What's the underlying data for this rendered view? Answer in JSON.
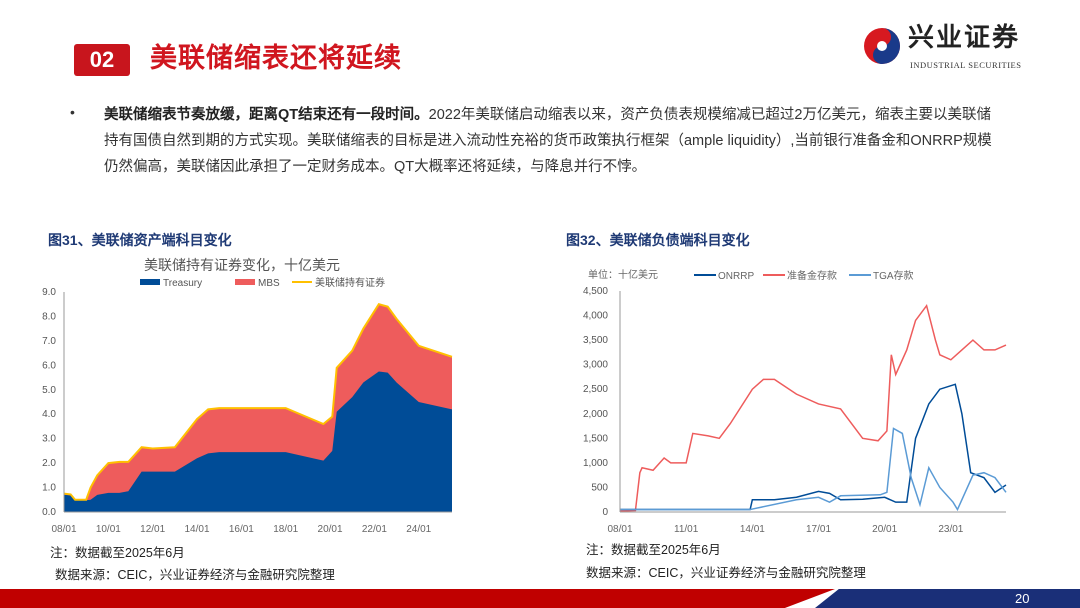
{
  "header": {
    "section_number": "02",
    "title": "美联储缩表还将延续"
  },
  "logo": {
    "cn": "兴业证券",
    "en": "INDUSTRIAL SECURITIES"
  },
  "body": {
    "bullet": "•",
    "bold": "美联储缩表节奏放缓，距离QT结束还有一段时间。",
    "text": "2022年美联储启动缩表以来，资产负债表规模缩减已超过2万亿美元，缩表主要以美联储持有国债自然到期的方式实现。美联储缩表的目标是进入流动性充裕的货币政策执行框架（ample liquidity）,当前银行准备金和ONRRP规模仍然偏高，美联储因此承担了一定财务成本。QT大概率还将延续，与降息并行不悖。"
  },
  "figure31": {
    "caption": "图31、美联储资产端科目变化",
    "note": "注：数据截至2025年6月",
    "source": "数据来源：CEIC，兴业证券经济与金融研究院整理"
  },
  "figure32": {
    "caption": "图32、美联储负债端科目变化",
    "note": "注：数据截至2025年6月",
    "source": "数据来源：CEIC，兴业证券经济与金融研究院整理"
  },
  "footer": {
    "page": "20"
  },
  "chart_data": [
    {
      "type": "area",
      "title": "美联储持有证券变化，十亿美元",
      "legend": [
        "Treasury",
        "MBS",
        "美联储持有证券"
      ],
      "colors": {
        "Treasury": "#004c97",
        "MBS": "#ee5c5c",
        "total": "#ffc000"
      },
      "xticks": [
        "08/01",
        "10/01",
        "12/01",
        "14/01",
        "16/01",
        "18/01",
        "20/01",
        "22/01",
        "24/01"
      ],
      "xlim": [
        2008,
        2025.5
      ],
      "ylim": [
        0,
        9
      ],
      "yticks": [
        "0.0",
        "1.0",
        "2.0",
        "3.0",
        "4.0",
        "5.0",
        "6.0",
        "7.0",
        "8.0",
        "9.0"
      ],
      "x": [
        2008,
        2008.3,
        2008.5,
        2009,
        2009.2,
        2009.5,
        2010,
        2010.5,
        2010.9,
        2011.5,
        2012,
        2013,
        2014,
        2014.5,
        2015,
        2018,
        2019.7,
        2020.1,
        2020.3,
        2021,
        2021.5,
        2022.2,
        2022.6,
        2023,
        2024,
        2025.5
      ],
      "series": [
        {
          "name": "Treasury",
          "values": [
            0.7,
            0.68,
            0.48,
            0.48,
            0.5,
            0.7,
            0.78,
            0.78,
            0.85,
            1.65,
            1.65,
            1.65,
            2.2,
            2.4,
            2.45,
            2.45,
            2.1,
            2.5,
            4.1,
            4.7,
            5.3,
            5.75,
            5.7,
            5.3,
            4.5,
            4.2
          ]
        },
        {
          "name": "美联储持有证券",
          "values": [
            0.75,
            0.72,
            0.5,
            0.5,
            1.0,
            1.5,
            2.0,
            2.05,
            2.05,
            2.65,
            2.6,
            2.65,
            3.8,
            4.2,
            4.25,
            4.25,
            3.6,
            3.9,
            5.9,
            6.6,
            7.5,
            8.5,
            8.4,
            7.9,
            6.8,
            6.35
          ]
        }
      ]
    },
    {
      "type": "line",
      "unit": "单位：十亿美元",
      "legend": [
        "ONRRP",
        "准备金存款",
        "TGA存款"
      ],
      "colors": {
        "ONRRP": "#004c97",
        "准备金存款": "#ee5c5c",
        "TGA存款": "#5b9bd5"
      },
      "xticks": [
        "08/01",
        "11/01",
        "14/01",
        "17/01",
        "20/01",
        "23/01"
      ],
      "yticks": [
        "0",
        "500",
        "1,000",
        "1,500",
        "2,000",
        "2,500",
        "3,000",
        "3,500",
        "4,000",
        "4,500"
      ],
      "xlim": [
        2008,
        2025.5
      ],
      "ylim": [
        0,
        4500
      ],
      "series": [
        {
          "name": "准备金存款",
          "x": [
            2008,
            2008.7,
            2008.9,
            2009,
            2009.5,
            2010,
            2010.3,
            2011,
            2011.3,
            2012,
            2012.5,
            2013,
            2014,
            2014.5,
            2015,
            2016,
            2017,
            2018,
            2019,
            2019.7,
            2020.1,
            2020.3,
            2020.5,
            2021,
            2021.4,
            2021.9,
            2022.3,
            2022.5,
            2023,
            2023.5,
            2024,
            2024.5,
            2025,
            2025.5
          ],
          "values": [
            20,
            30,
            800,
            900,
            850,
            1100,
            1000,
            1000,
            1600,
            1550,
            1500,
            1800,
            2500,
            2700,
            2700,
            2400,
            2200,
            2100,
            1500,
            1450,
            1650,
            3200,
            2800,
            3300,
            3900,
            4200,
            3500,
            3200,
            3100,
            3300,
            3500,
            3300,
            3300,
            3400
          ]
        },
        {
          "name": "ONRRP",
          "x": [
            2008,
            2013.9,
            2014,
            2015,
            2016,
            2017,
            2017.5,
            2018,
            2019,
            2020,
            2020.5,
            2021,
            2021.4,
            2022,
            2022.5,
            2023.2,
            2023.5,
            2023.9,
            2024.5,
            2025,
            2025.5
          ],
          "values": [
            50,
            50,
            250,
            250,
            300,
            420,
            380,
            250,
            260,
            300,
            200,
            200,
            1500,
            2200,
            2500,
            2600,
            2000,
            800,
            700,
            400,
            550
          ]
        },
        {
          "name": "TGA存款",
          "x": [
            2008,
            2013.9,
            2014,
            2016,
            2017,
            2017.5,
            2018,
            2019.8,
            2020.1,
            2020.4,
            2020.8,
            2021.2,
            2021.6,
            2022,
            2022.5,
            2023.1,
            2023.3,
            2024,
            2024.5,
            2025,
            2025.5
          ],
          "values": [
            50,
            50,
            60,
            250,
            300,
            200,
            330,
            350,
            400,
            1700,
            1600,
            700,
            150,
            900,
            500,
            200,
            50,
            750,
            800,
            700,
            400
          ]
        }
      ]
    }
  ]
}
